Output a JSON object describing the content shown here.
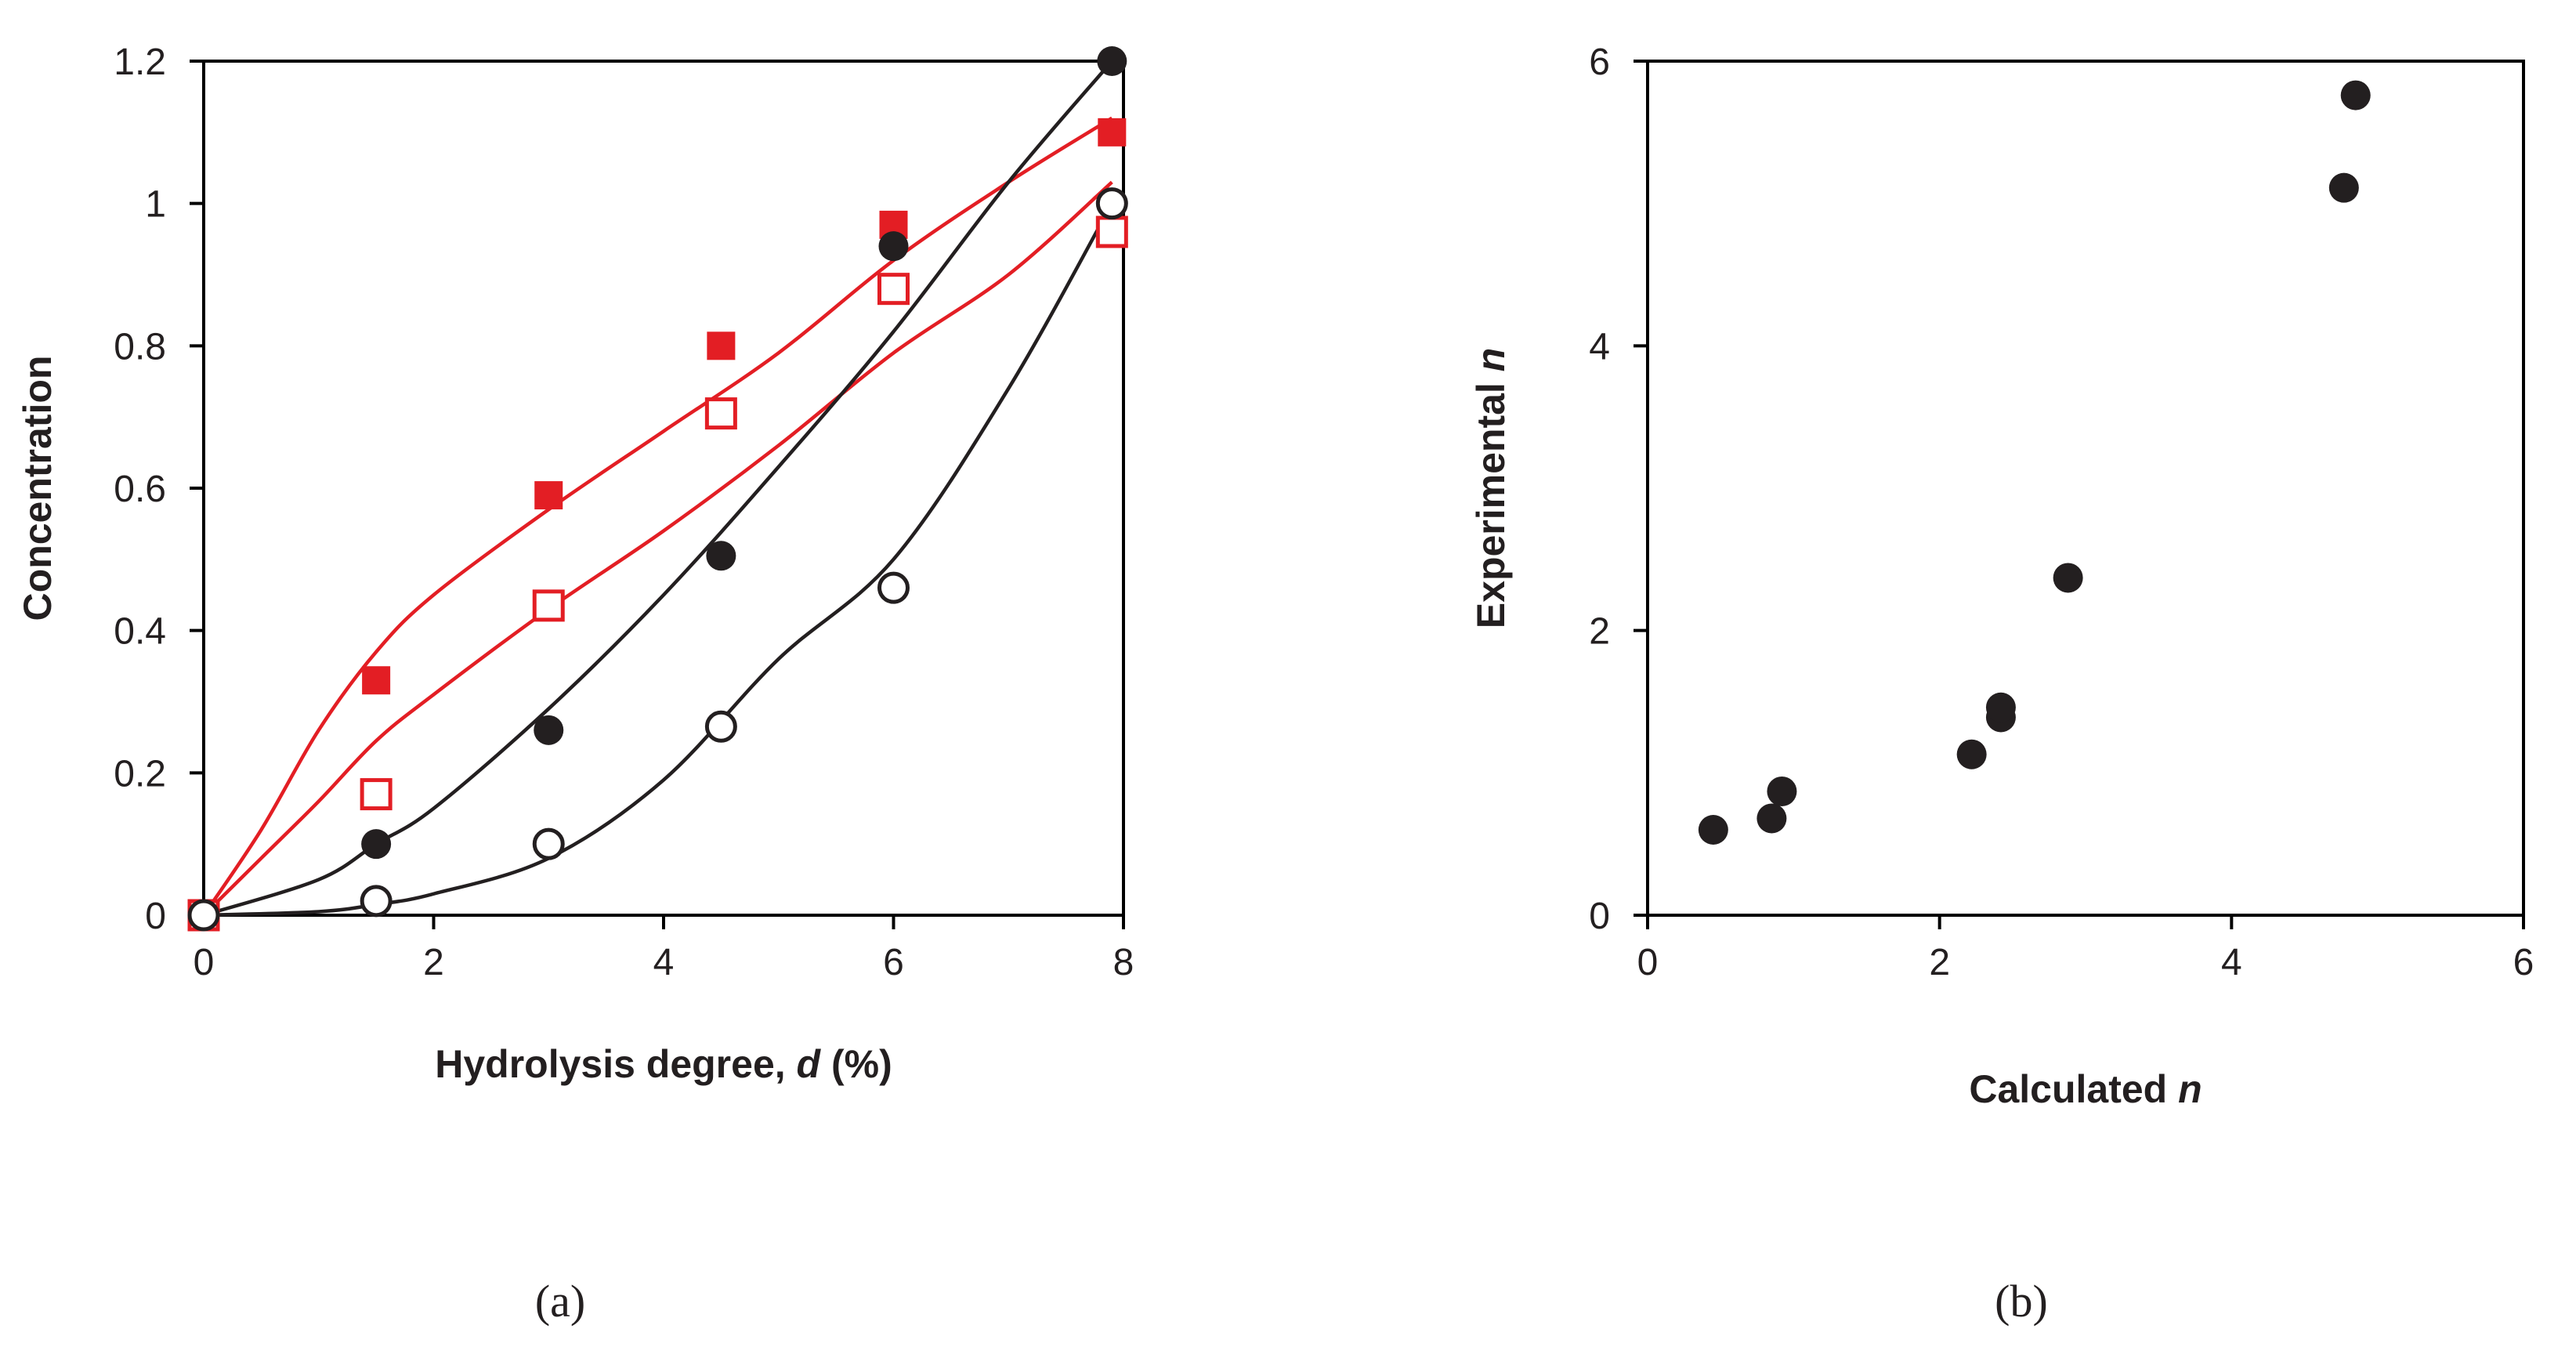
{
  "chart_data": [
    {
      "panel": "(a)",
      "type": "scatter",
      "xlabel": {
        "main": "Hydrolysis degree, ",
        "var": "d",
        "unit": " (%)"
      },
      "ylabel": "Concentration",
      "xlim": [
        0,
        8
      ],
      "ylim": [
        0,
        1.2
      ],
      "xticks": [
        "0",
        "2",
        "4",
        "6",
        "8"
      ],
      "yticks": [
        "0",
        "0.2",
        "0.4",
        "0.6",
        "0.8",
        "1",
        "1.2"
      ],
      "grid": false,
      "series": [
        {
          "name": "filled red squares",
          "marker": "square",
          "filled": true,
          "color": "#e31e24",
          "points": [
            [
              0,
              0
            ],
            [
              1.5,
              0.33
            ],
            [
              3,
              0.59
            ],
            [
              4.5,
              0.8
            ],
            [
              6,
              0.97
            ],
            [
              7.9,
              1.1
            ]
          ],
          "fit": [
            [
              0,
              0
            ],
            [
              0.5,
              0.12
            ],
            [
              1,
              0.26
            ],
            [
              1.5,
              0.37
            ],
            [
              2,
              0.45
            ],
            [
              3,
              0.57
            ],
            [
              4,
              0.68
            ],
            [
              5,
              0.79
            ],
            [
              6,
              0.92
            ],
            [
              7,
              1.03
            ],
            [
              7.9,
              1.12
            ]
          ]
        },
        {
          "name": "open red squares",
          "marker": "square",
          "filled": false,
          "color": "#e31e24",
          "points": [
            [
              0,
              0
            ],
            [
              1.5,
              0.17
            ],
            [
              3,
              0.435
            ],
            [
              4.5,
              0.705
            ],
            [
              6,
              0.88
            ],
            [
              7.9,
              0.96
            ]
          ],
          "fit": [
            [
              0,
              0
            ],
            [
              0.5,
              0.08
            ],
            [
              1,
              0.16
            ],
            [
              1.5,
              0.245
            ],
            [
              2,
              0.31
            ],
            [
              3,
              0.43
            ],
            [
              4,
              0.54
            ],
            [
              5,
              0.66
            ],
            [
              6,
              0.79
            ],
            [
              7,
              0.9
            ],
            [
              7.9,
              1.03
            ]
          ]
        },
        {
          "name": "filled black circles",
          "marker": "circle",
          "filled": true,
          "color": "#231f20",
          "points": [
            [
              0,
              0
            ],
            [
              1.5,
              0.1
            ],
            [
              3,
              0.26
            ],
            [
              4.5,
              0.505
            ],
            [
              6,
              0.94
            ],
            [
              7.9,
              1.2
            ]
          ],
          "fit": [
            [
              0,
              0
            ],
            [
              1,
              0.05
            ],
            [
              1.5,
              0.1
            ],
            [
              2,
              0.15
            ],
            [
              3,
              0.29
            ],
            [
              4,
              0.45
            ],
            [
              5,
              0.63
            ],
            [
              6,
              0.82
            ],
            [
              7,
              1.03
            ],
            [
              7.9,
              1.2
            ]
          ]
        },
        {
          "name": "open black circles",
          "marker": "circle",
          "filled": false,
          "color": "#231f20",
          "points": [
            [
              0,
              0
            ],
            [
              1.5,
              0.02
            ],
            [
              3,
              0.1
            ],
            [
              4.5,
              0.265
            ],
            [
              6,
              0.46
            ],
            [
              7.9,
              1.0
            ]
          ],
          "fit": [
            [
              0,
              0
            ],
            [
              1,
              0.005
            ],
            [
              1.5,
              0.015
            ],
            [
              2,
              0.03
            ],
            [
              3,
              0.08
            ],
            [
              4,
              0.19
            ],
            [
              5,
              0.36
            ],
            [
              6,
              0.5
            ],
            [
              7,
              0.74
            ],
            [
              7.9,
              1.0
            ]
          ]
        }
      ]
    },
    {
      "panel": "(b)",
      "type": "scatter",
      "xlabel": {
        "main": "Calculated ",
        "var": "n",
        "unit": ""
      },
      "ylabel": {
        "main": "Experimental ",
        "var": "n"
      },
      "xlim": [
        0,
        6
      ],
      "ylim": [
        0,
        6
      ],
      "xticks": [
        "0",
        "2",
        "4",
        "6"
      ],
      "yticks": [
        "0",
        "2",
        "4",
        "6"
      ],
      "grid": false,
      "series": [
        {
          "name": "data",
          "marker": "circle",
          "filled": true,
          "color": "#231f20",
          "points": [
            [
              0.45,
              0.6
            ],
            [
              0.85,
              0.68
            ],
            [
              0.92,
              0.87
            ],
            [
              2.22,
              1.13
            ],
            [
              2.42,
              1.39
            ],
            [
              2.42,
              1.46
            ],
            [
              2.88,
              2.37
            ],
            [
              4.77,
              5.11
            ],
            [
              4.85,
              5.76
            ]
          ]
        }
      ]
    }
  ]
}
